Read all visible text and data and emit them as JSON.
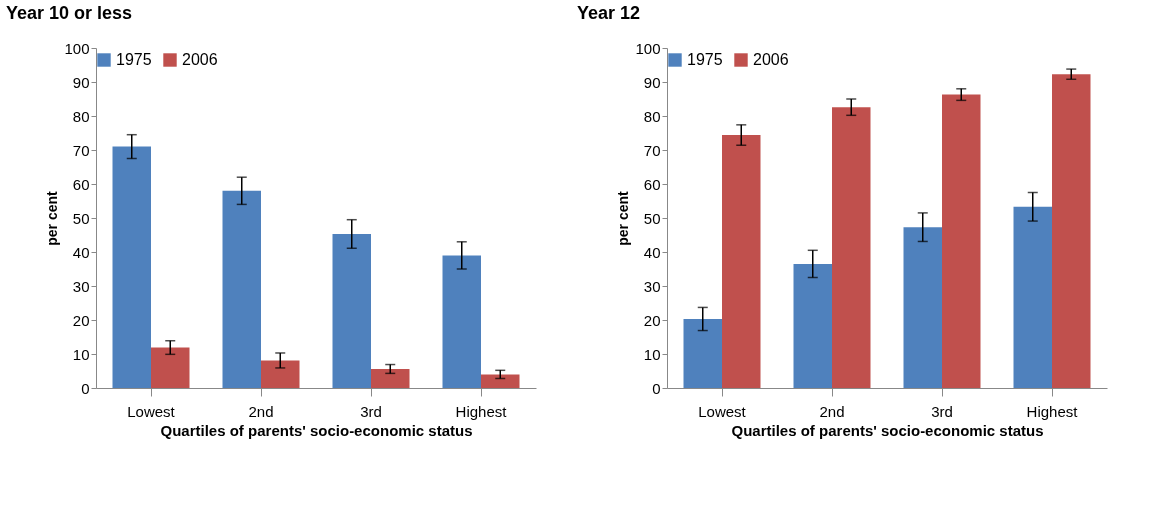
{
  "chart_data": [
    {
      "type": "bar",
      "title": "Year 10 or less",
      "xlabel": "Quartiles of parents' socio-economic  status",
      "ylabel": "per cent",
      "categories": [
        "Lowest",
        "2nd",
        "3rd",
        "Highest"
      ],
      "series": [
        {
          "name": "1975",
          "color": "#4f81bd",
          "values": [
            71,
            58,
            45.3,
            39
          ],
          "errors": [
            3.5,
            4,
            4.2,
            4
          ]
        },
        {
          "name": "2006",
          "color": "#c0504d",
          "values": [
            11.9,
            8.1,
            5.6,
            4
          ],
          "errors": [
            2,
            2.2,
            1.3,
            1.2
          ]
        }
      ],
      "ylim": [
        0,
        100
      ],
      "yticks": [
        0,
        10,
        20,
        30,
        40,
        50,
        60,
        70,
        80,
        90,
        100
      ],
      "grid": false,
      "legend": "top"
    },
    {
      "type": "bar",
      "title": "Year 12",
      "xlabel": "Quartiles of parents' socio-economic  status",
      "ylabel": "per cent",
      "categories": [
        "Lowest",
        "2nd",
        "3rd",
        "Highest"
      ],
      "series": [
        {
          "name": "1975",
          "color": "#4f81bd",
          "values": [
            20.3,
            36.5,
            47.3,
            53.3
          ],
          "errors": [
            3.4,
            4,
            4.2,
            4.2
          ]
        },
        {
          "name": "2006",
          "color": "#c0504d",
          "values": [
            74.4,
            82.6,
            86.3,
            92.3
          ],
          "errors": [
            3,
            2.4,
            1.7,
            1.5
          ]
        }
      ],
      "ylim": [
        0,
        100
      ],
      "yticks": [
        0,
        10,
        20,
        30,
        40,
        50,
        60,
        70,
        80,
        90,
        100
      ],
      "grid": false,
      "legend": "top"
    }
  ]
}
